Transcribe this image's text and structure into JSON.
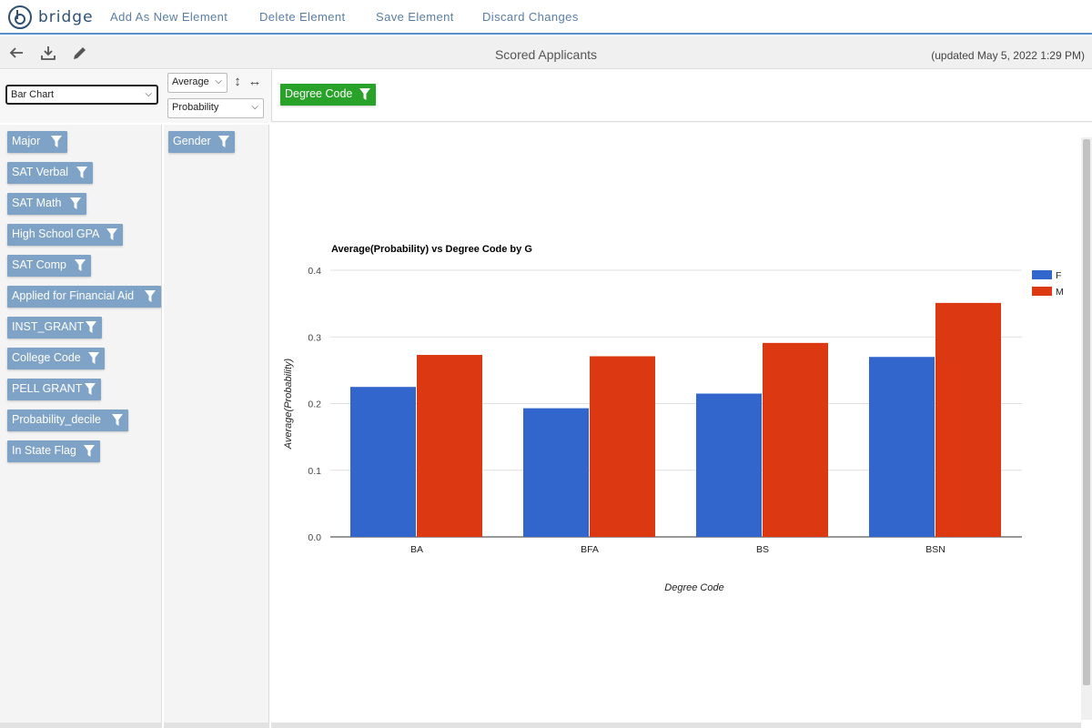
{
  "app": {
    "logo_text": "bridge"
  },
  "nav": {
    "items": [
      {
        "label": "Add As New Element"
      },
      {
        "label": "Delete Element"
      },
      {
        "label": "Save Element"
      },
      {
        "label": "Discard Changes"
      }
    ]
  },
  "toolbar": {
    "icons": [
      "back-arrow-icon",
      "download-icon",
      "edit-pencil-icon"
    ],
    "title": "Scored Applicants",
    "updated": "(updated May 5, 2022 1:29 PM)"
  },
  "controls": {
    "chart_type": "Bar Chart",
    "aggregate": "Average",
    "measure": "Probability",
    "column_field": "Degree Code"
  },
  "fields": [
    "Major",
    "SAT Verbal",
    "SAT Math",
    "High School GPA",
    "SAT Comp",
    "Applied for Financial Aid",
    "INST_GRANT",
    "College Code",
    "PELL GRANT",
    "Probability_decile",
    "In State Flag"
  ],
  "group_fields": [
    "Gender"
  ],
  "colors": {
    "nav_accent": "#5b8fc7",
    "pill": "#7fa3c7",
    "pill_green": "#28a228",
    "series_f": "#3366cc",
    "series_m": "#dc3912"
  },
  "chart_data": {
    "type": "bar",
    "title": "Average(Probability) vs Degree Code by G",
    "xlabel": "Degree Code",
    "ylabel": "Average(Probability)",
    "categories": [
      "BA",
      "BFA",
      "BS",
      "BSN"
    ],
    "series": [
      {
        "name": "F",
        "values": [
          0.225,
          0.193,
          0.215,
          0.27
        ],
        "color": "#3366cc"
      },
      {
        "name": "M",
        "values": [
          0.273,
          0.271,
          0.291,
          0.351
        ],
        "color": "#dc3912"
      }
    ],
    "ylim": [
      0,
      0.4
    ],
    "yticks": [
      "0.0",
      "0.1",
      "0.2",
      "0.3",
      "0.4"
    ],
    "grid": true,
    "legend": "right"
  }
}
